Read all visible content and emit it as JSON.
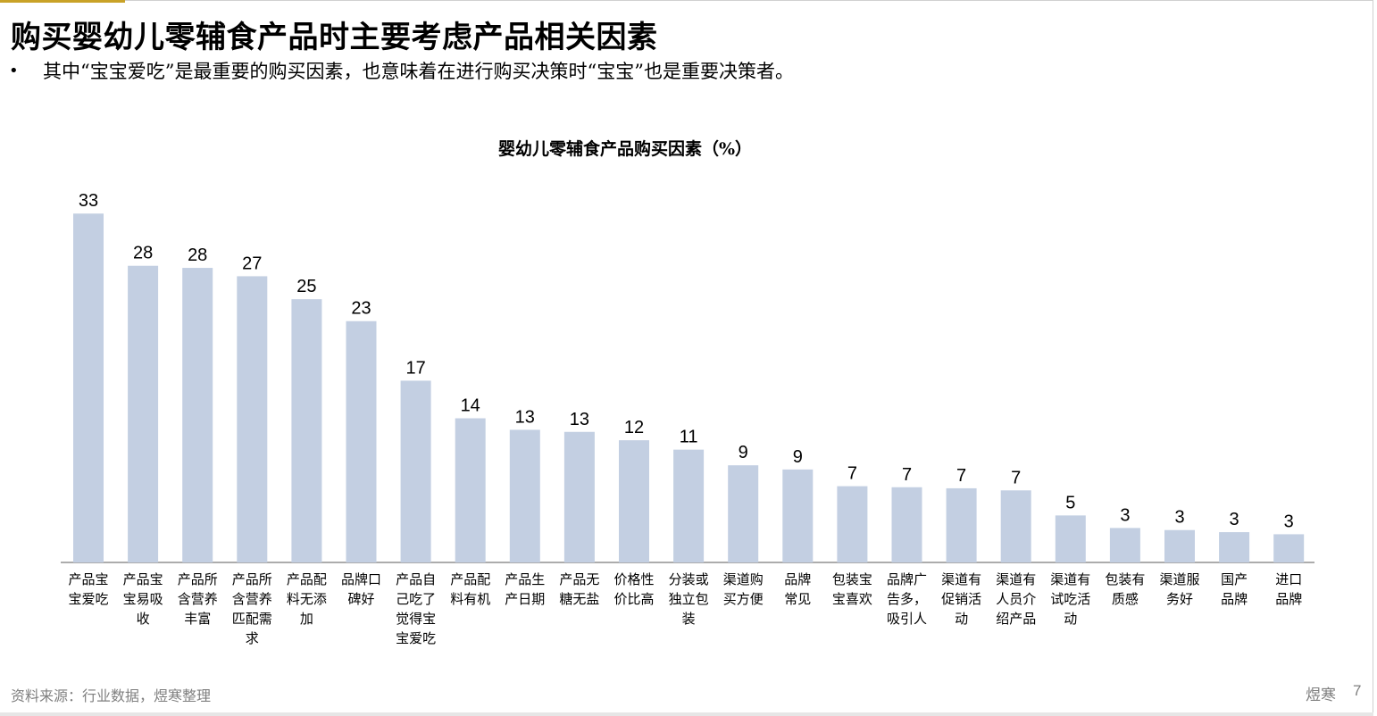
{
  "page": {
    "title": "购买婴幼儿零辅食产品时主要考虑产品相关因素",
    "bullet": "其中“宝宝爱吃”是最重要的购买因素，也意味着在进行购买决策时“宝宝”也是重要决策者。",
    "source": "资料来源：行业数据，煜寒整理",
    "brand": "煜寒",
    "page_number": "7"
  },
  "colors": {
    "bar": "#c3cfe2",
    "axis": "#595959",
    "accent": "#c9a227"
  },
  "chart_data": {
    "type": "bar",
    "title": "婴幼儿零辅食产品购买因素（%）",
    "categories": [
      [
        "产品宝",
        "宝爱吃"
      ],
      [
        "产品宝",
        "宝易吸",
        "收"
      ],
      [
        "产品所",
        "含营养",
        "丰富"
      ],
      [
        "产品所",
        "含营养",
        "匹配需",
        "求"
      ],
      [
        "产品配",
        "料无添",
        "加"
      ],
      [
        "品牌口",
        "碑好"
      ],
      [
        "产品自",
        "己吃了",
        "觉得宝",
        "宝爱吃"
      ],
      [
        "产品配",
        "料有机"
      ],
      [
        "产品生",
        "产日期"
      ],
      [
        "产品无",
        "糖无盐"
      ],
      [
        "价格性",
        "价比高"
      ],
      [
        "分装或",
        "独立包",
        "装"
      ],
      [
        "渠道购",
        "买方便"
      ],
      [
        "品牌",
        "常见"
      ],
      [
        "包装宝",
        "宝喜欢"
      ],
      [
        "品牌广",
        "告多，",
        "吸引人"
      ],
      [
        "渠道有",
        "促销活",
        "动"
      ],
      [
        "渠道有",
        "人员介",
        "绍产品"
      ],
      [
        "渠道有",
        "试吃活",
        "动"
      ],
      [
        "包装有",
        "质感"
      ],
      [
        "渠道服",
        "务好"
      ],
      [
        "国产",
        "品牌"
      ],
      [
        "进口",
        "品牌"
      ]
    ],
    "values": [
      33.4,
      28.4,
      28.2,
      27.4,
      25.2,
      23.1,
      17.4,
      13.8,
      12.7,
      12.5,
      11.7,
      10.8,
      9.3,
      8.9,
      7.3,
      7.2,
      7.1,
      6.9,
      4.5,
      3.3,
      3.1,
      2.9,
      2.7
    ],
    "data_labels": [
      "33",
      "28",
      "28",
      "27",
      "25",
      "23",
      "17",
      "14",
      "13",
      "13",
      "12",
      "11",
      "9",
      "9",
      "7",
      "7",
      "7",
      "7",
      "5",
      "3",
      "3",
      "3",
      "3"
    ],
    "ylim": [
      0,
      35
    ],
    "grid": false,
    "legend": "none"
  }
}
